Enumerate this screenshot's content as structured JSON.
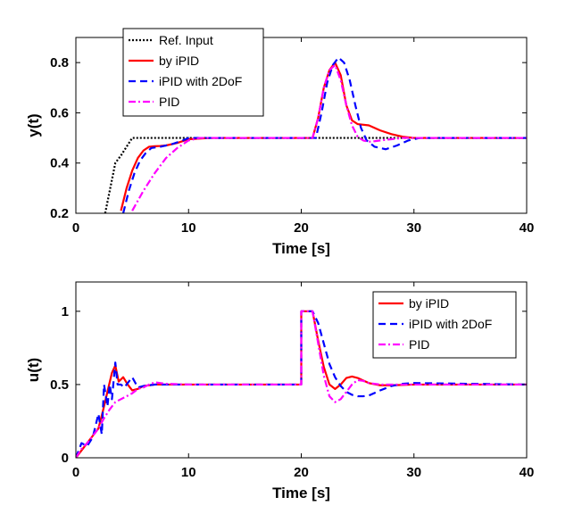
{
  "chart_data": [
    {
      "type": "line",
      "xlabel": "Time [s]",
      "ylabel": "y(t)",
      "xlim": [
        0,
        40
      ],
      "ylim": [
        0.2,
        0.9
      ],
      "xticks": [
        0,
        10,
        20,
        30,
        40
      ],
      "yticks": [
        0.2,
        0.4,
        0.6,
        0.8
      ],
      "grid": false,
      "legend_position": "top-left",
      "series": [
        {
          "name": "Ref. Input",
          "color": "#000000",
          "dash": "dotted",
          "x": [
            2.6,
            3.5,
            4.0,
            5.0,
            40
          ],
          "y": [
            0.2,
            0.4,
            0.43,
            0.5,
            0.5
          ]
        },
        {
          "name": "by iPID",
          "color": "#ff0000",
          "dash": "solid",
          "x": [
            4.0,
            4.5,
            5.0,
            5.5,
            6.0,
            6.5,
            7.0,
            7.5,
            8.0,
            9.0,
            10.0,
            12.0,
            21.0,
            21.5,
            22.0,
            22.5,
            23.0,
            23.5,
            24.0,
            24.5,
            25.0,
            26.0,
            27.0,
            28.0,
            29.0,
            30.0,
            32.0,
            40.0
          ],
          "y": [
            0.21,
            0.3,
            0.37,
            0.42,
            0.45,
            0.465,
            0.467,
            0.468,
            0.47,
            0.48,
            0.495,
            0.5,
            0.5,
            0.58,
            0.7,
            0.77,
            0.8,
            0.75,
            0.63,
            0.57,
            0.555,
            0.55,
            0.53,
            0.515,
            0.505,
            0.5,
            0.5,
            0.5
          ]
        },
        {
          "name": "iPID with 2DoF",
          "color": "#0000ff",
          "dash": "dashed",
          "x": [
            4.2,
            4.7,
            5.2,
            5.7,
            6.2,
            6.7,
            7.5,
            8.5,
            9.5,
            10.0,
            12.0,
            21.3,
            21.8,
            22.3,
            22.8,
            23.3,
            23.8,
            24.3,
            24.8,
            25.3,
            25.8,
            26.5,
            27.5,
            28.5,
            29.5,
            30.5,
            32.0,
            40.0
          ],
          "y": [
            0.2,
            0.29,
            0.36,
            0.41,
            0.44,
            0.46,
            0.465,
            0.475,
            0.49,
            0.5,
            0.5,
            0.5,
            0.6,
            0.72,
            0.79,
            0.82,
            0.8,
            0.73,
            0.63,
            0.54,
            0.49,
            0.465,
            0.455,
            0.47,
            0.49,
            0.5,
            0.5,
            0.5
          ]
        },
        {
          "name": "PID",
          "color": "#ff00ff",
          "dash": "dashdot",
          "x": [
            5.0,
            6.0,
            7.0,
            8.0,
            9.0,
            10.0,
            11.0,
            12.0,
            21.0,
            21.5,
            22.0,
            22.5,
            23.0,
            23.5,
            24.0,
            24.5,
            25.0,
            25.5,
            26.0,
            26.5,
            27.0,
            28.0,
            29.0,
            30.0,
            40.0
          ],
          "y": [
            0.21,
            0.29,
            0.36,
            0.42,
            0.46,
            0.49,
            0.5,
            0.5,
            0.5,
            0.58,
            0.7,
            0.77,
            0.79,
            0.73,
            0.63,
            0.55,
            0.505,
            0.49,
            0.485,
            0.487,
            0.49,
            0.495,
            0.5,
            0.5,
            0.5
          ]
        }
      ]
    },
    {
      "type": "line",
      "xlabel": "Time [s]",
      "ylabel": "u(t)",
      "xlim": [
        0,
        40
      ],
      "ylim": [
        0,
        1.2
      ],
      "xticks": [
        0,
        10,
        20,
        30,
        40
      ],
      "yticks": [
        0,
        0.5,
        1
      ],
      "grid": false,
      "legend_position": "top-right",
      "series": [
        {
          "name": "by iPID",
          "color": "#ff0000",
          "dash": "solid",
          "x": [
            0,
            0.5,
            1.0,
            1.5,
            2.0,
            2.4,
            2.8,
            3.2,
            3.5,
            3.8,
            4.2,
            4.6,
            5.0,
            5.5,
            6.0,
            7.0,
            8.0,
            10.0,
            20.0,
            20.0,
            21.0,
            21.5,
            22.0,
            22.5,
            23.0,
            23.5,
            24.0,
            24.5,
            25.0,
            26.0,
            27.0,
            28.0,
            30.0,
            40.0
          ],
          "y": [
            0,
            0.05,
            0.1,
            0.15,
            0.2,
            0.32,
            0.45,
            0.58,
            0.63,
            0.52,
            0.55,
            0.5,
            0.46,
            0.47,
            0.49,
            0.5,
            0.5,
            0.5,
            0.5,
            1.0,
            1.0,
            0.8,
            0.62,
            0.5,
            0.47,
            0.5,
            0.545,
            0.555,
            0.545,
            0.51,
            0.495,
            0.495,
            0.5,
            0.5
          ]
        },
        {
          "name": "iPID with 2DoF",
          "color": "#0000ff",
          "dash": "dashed",
          "x": [
            0,
            0.5,
            1.0,
            1.5,
            2.0,
            2.3,
            2.5,
            2.8,
            3.0,
            3.2,
            3.5,
            3.7,
            4.0,
            4.3,
            4.7,
            5.0,
            5.5,
            6.0,
            7.0,
            8.0,
            10.0,
            20.0,
            20.0,
            21.0,
            21.5,
            22.0,
            22.5,
            23.0,
            23.5,
            24.0,
            24.5,
            25.0,
            25.5,
            26.0,
            27.0,
            28.0,
            29.0,
            30.0,
            40.0
          ],
          "y": [
            0,
            0.1,
            0.08,
            0.14,
            0.3,
            0.16,
            0.5,
            0.35,
            0.5,
            0.4,
            0.65,
            0.5,
            0.5,
            0.48,
            0.52,
            0.55,
            0.48,
            0.49,
            0.5,
            0.5,
            0.5,
            0.5,
            1.0,
            1.0,
            0.92,
            0.78,
            0.64,
            0.55,
            0.49,
            0.45,
            0.43,
            0.42,
            0.42,
            0.425,
            0.46,
            0.49,
            0.505,
            0.51,
            0.5
          ]
        },
        {
          "name": "PID",
          "color": "#ff00ff",
          "dash": "dashdot",
          "x": [
            0,
            0.5,
            1.0,
            1.5,
            2.0,
            2.5,
            3.0,
            3.5,
            4.0,
            4.5,
            5.0,
            5.5,
            6.0,
            6.5,
            7.0,
            8.0,
            10.0,
            20.0,
            20.0,
            21.0,
            21.5,
            22.0,
            22.5,
            23.0,
            23.5,
            24.0,
            24.5,
            25.0,
            25.5,
            26.0,
            27.0,
            28.0,
            30.0,
            40.0
          ],
          "y": [
            0,
            0.06,
            0.1,
            0.15,
            0.2,
            0.27,
            0.33,
            0.38,
            0.4,
            0.42,
            0.44,
            0.47,
            0.48,
            0.5,
            0.515,
            0.505,
            0.5,
            0.5,
            1.0,
            1.0,
            0.78,
            0.56,
            0.42,
            0.38,
            0.4,
            0.45,
            0.5,
            0.53,
            0.525,
            0.51,
            0.5,
            0.5,
            0.5,
            0.5
          ]
        }
      ]
    }
  ]
}
